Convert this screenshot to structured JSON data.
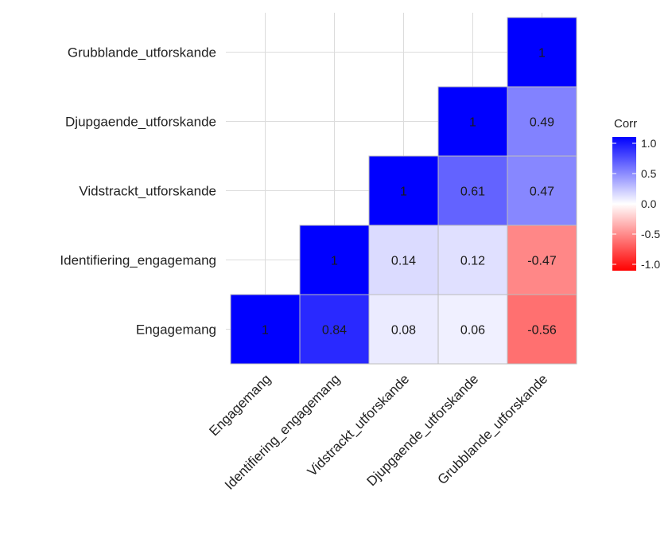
{
  "chart_data": {
    "type": "heatmap",
    "title": "",
    "xlabel": "",
    "ylabel": "",
    "variables": [
      "Engagemang",
      "Identifiering_engagemang",
      "Vidstrackt_utforskande",
      "Djupgaende_utforskande",
      "Grubblande_utforskande"
    ],
    "cells": [
      {
        "row": "Engagemang",
        "col": "Engagemang",
        "value": 1,
        "label": "1"
      },
      {
        "row": "Engagemang",
        "col": "Identifiering_engagemang",
        "value": 0.84,
        "label": "0.84"
      },
      {
        "row": "Engagemang",
        "col": "Vidstrackt_utforskande",
        "value": 0.08,
        "label": "0.08"
      },
      {
        "row": "Engagemang",
        "col": "Djupgaende_utforskande",
        "value": 0.06,
        "label": "0.06"
      },
      {
        "row": "Engagemang",
        "col": "Grubblande_utforskande",
        "value": -0.56,
        "label": "-0.56"
      },
      {
        "row": "Identifiering_engagemang",
        "col": "Identifiering_engagemang",
        "value": 1,
        "label": "1"
      },
      {
        "row": "Identifiering_engagemang",
        "col": "Vidstrackt_utforskande",
        "value": 0.14,
        "label": "0.14"
      },
      {
        "row": "Identifiering_engagemang",
        "col": "Djupgaende_utforskande",
        "value": 0.12,
        "label": "0.12"
      },
      {
        "row": "Identifiering_engagemang",
        "col": "Grubblande_utforskande",
        "value": -0.47,
        "label": "-0.47"
      },
      {
        "row": "Vidstrackt_utforskande",
        "col": "Vidstrackt_utforskande",
        "value": 1,
        "label": "1"
      },
      {
        "row": "Vidstrackt_utforskande",
        "col": "Djupgaende_utforskande",
        "value": 0.61,
        "label": "0.61"
      },
      {
        "row": "Vidstrackt_utforskande",
        "col": "Grubblande_utforskande",
        "value": 0.47,
        "label": "0.47"
      },
      {
        "row": "Djupgaende_utforskande",
        "col": "Djupgaende_utforskande",
        "value": 1,
        "label": "1"
      },
      {
        "row": "Djupgaende_utforskande",
        "col": "Grubblande_utforskande",
        "value": 0.49,
        "label": "0.49"
      },
      {
        "row": "Grubblande_utforskande",
        "col": "Grubblande_utforskande",
        "value": 1,
        "label": "1"
      }
    ],
    "legend": {
      "title": "Corr",
      "placement": "right",
      "ticks": [
        "1.0",
        "0.5",
        "0.0",
        "-0.5",
        "-1.0"
      ],
      "tick_values": [
        1,
        0.5,
        0,
        -0.5,
        -1
      ],
      "range": [
        -1,
        1
      ]
    },
    "colors": {
      "low": "#ff0000",
      "mid": "#ffffff",
      "high": "#0000ff",
      "grid": "#dcdcdc"
    },
    "grid": true
  }
}
